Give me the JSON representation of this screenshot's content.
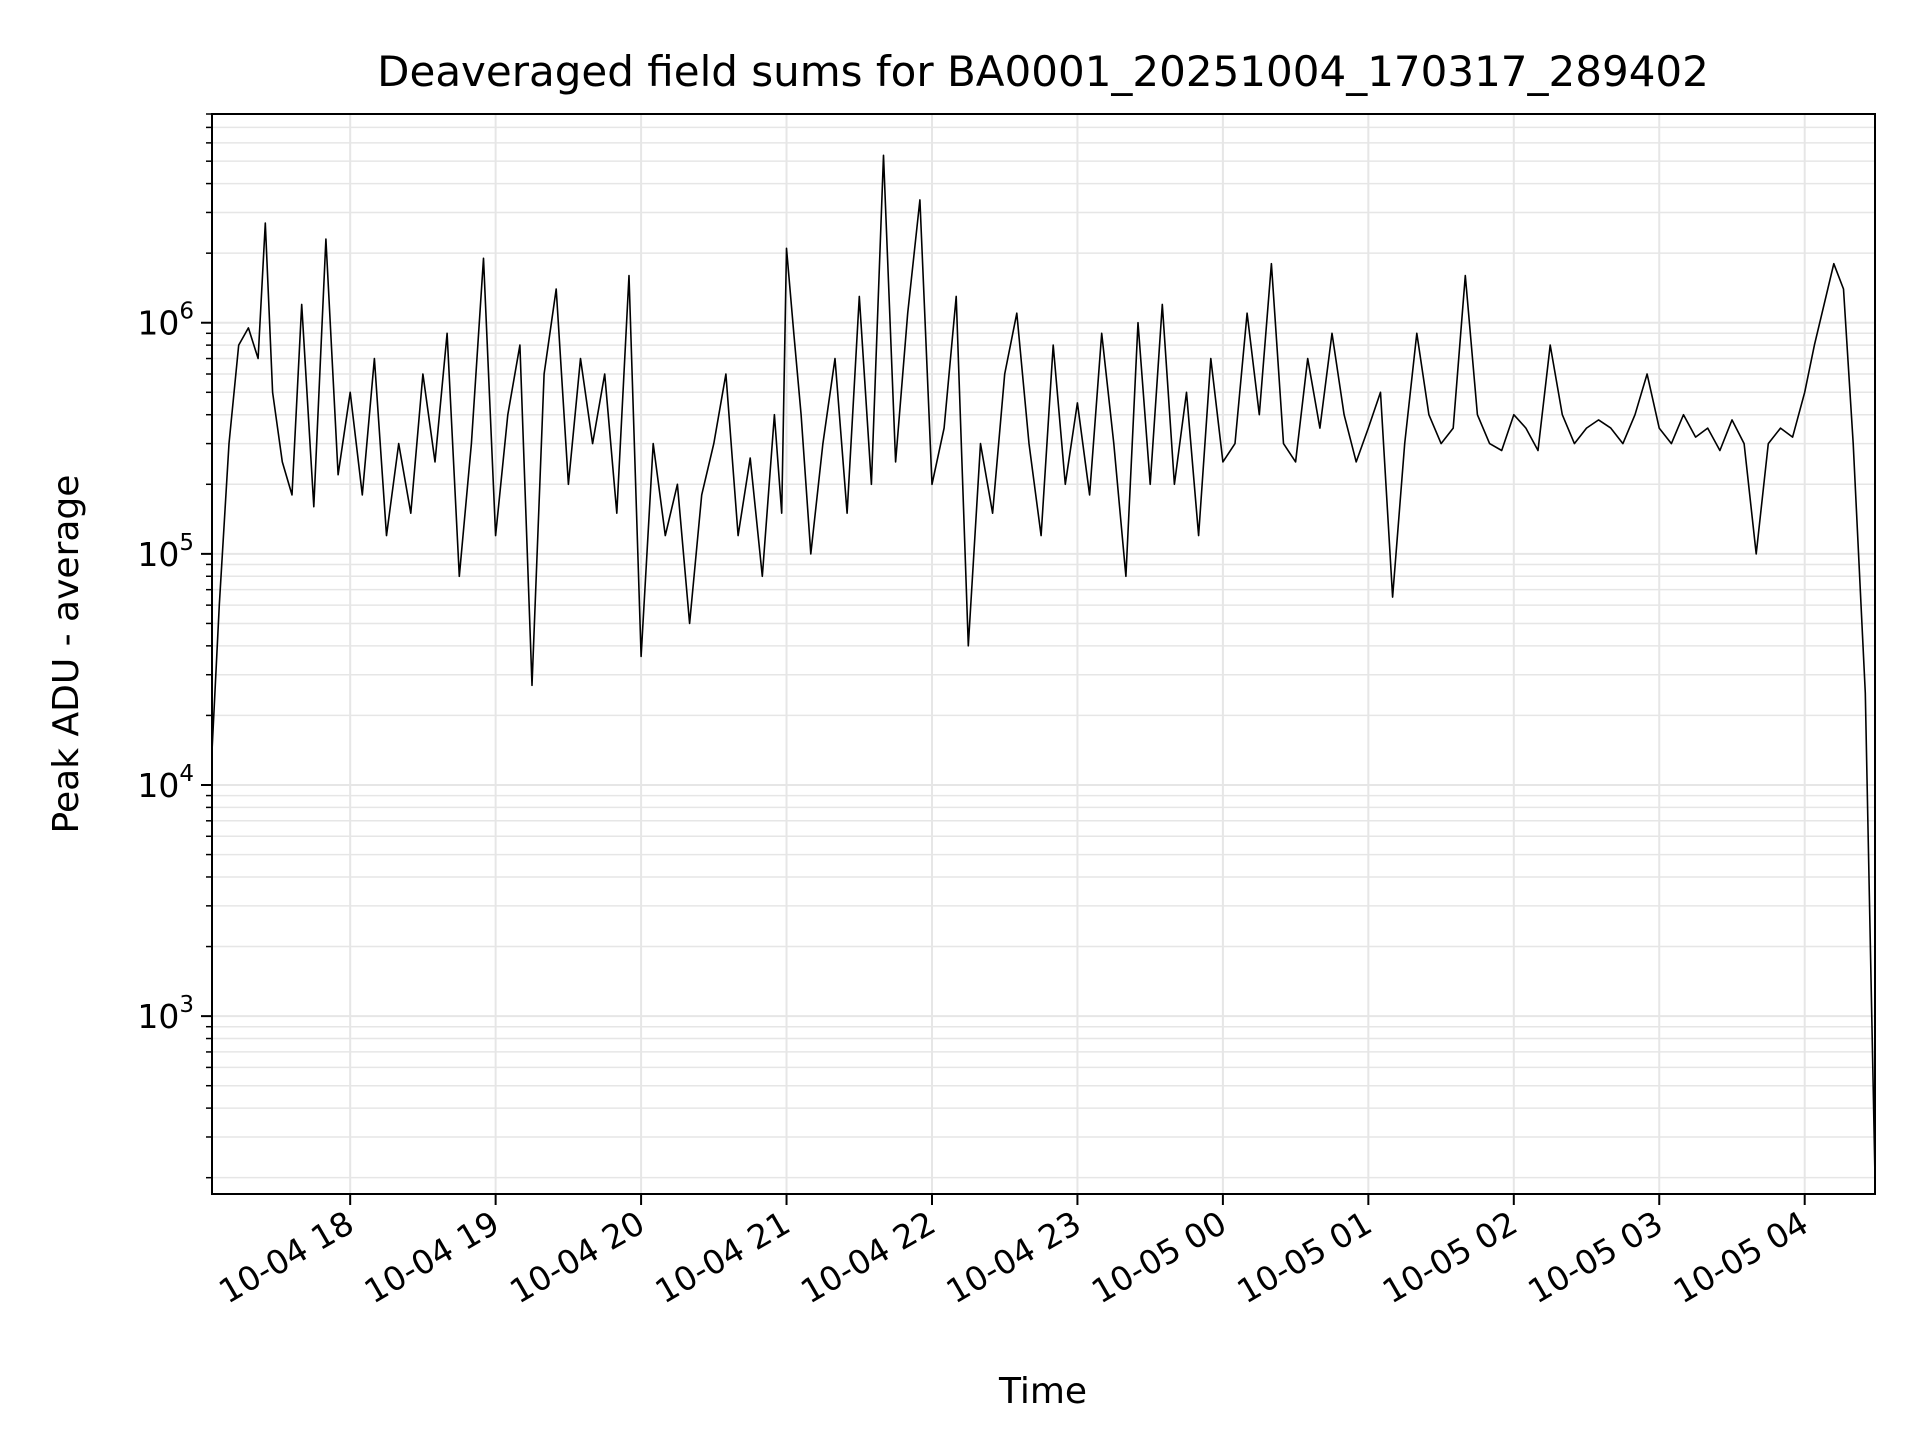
{
  "chart_data": {
    "type": "line",
    "title": "Deaveraged field sums for BA0001_20251004_170317_289402",
    "xlabel": "Time",
    "ylabel": "Peak ADU - average",
    "y_scale": "log",
    "grid": true,
    "grid_color": "#e6e6e6",
    "line_color": "#000000",
    "xlim": [
      "2025-10-04 17:03",
      "2025-10-05 04:29"
    ],
    "ylim": [
      170,
      8000000
    ],
    "x_ticks": [
      {
        "value": "2025-10-04 18:00",
        "label": "10-04 18"
      },
      {
        "value": "2025-10-04 19:00",
        "label": "10-04 19"
      },
      {
        "value": "2025-10-04 20:00",
        "label": "10-04 20"
      },
      {
        "value": "2025-10-04 21:00",
        "label": "10-04 21"
      },
      {
        "value": "2025-10-04 22:00",
        "label": "10-04 22"
      },
      {
        "value": "2025-10-04 23:00",
        "label": "10-04 23"
      },
      {
        "value": "2025-10-05 00:00",
        "label": "10-05 00"
      },
      {
        "value": "2025-10-05 01:00",
        "label": "10-05 01"
      },
      {
        "value": "2025-10-05 02:00",
        "label": "10-05 02"
      },
      {
        "value": "2025-10-05 03:00",
        "label": "10-05 03"
      },
      {
        "value": "2025-10-05 04:00",
        "label": "10-05 04"
      }
    ],
    "y_ticks": [
      {
        "value": 1000,
        "base": "10",
        "exp": "3"
      },
      {
        "value": 10000,
        "base": "10",
        "exp": "4"
      },
      {
        "value": 100000,
        "base": "10",
        "exp": "5"
      },
      {
        "value": 1000000,
        "base": "10",
        "exp": "6"
      }
    ],
    "series": [
      {
        "x": [
          "2025-10-04 17:03",
          "2025-10-04 17:06",
          "2025-10-04 17:10",
          "2025-10-04 17:14",
          "2025-10-04 17:18",
          "2025-10-04 17:22",
          "2025-10-04 17:25",
          "2025-10-04 17:28",
          "2025-10-04 17:32",
          "2025-10-04 17:36",
          "2025-10-04 17:40",
          "2025-10-04 17:45",
          "2025-10-04 17:50",
          "2025-10-04 17:55",
          "2025-10-04 18:00",
          "2025-10-04 18:05",
          "2025-10-04 18:10",
          "2025-10-04 18:15",
          "2025-10-04 18:20",
          "2025-10-04 18:25",
          "2025-10-04 18:30",
          "2025-10-04 18:35",
          "2025-10-04 18:40",
          "2025-10-04 18:45",
          "2025-10-04 18:50",
          "2025-10-04 18:55",
          "2025-10-04 19:00",
          "2025-10-04 19:05",
          "2025-10-04 19:10",
          "2025-10-04 19:15",
          "2025-10-04 19:20",
          "2025-10-04 19:25",
          "2025-10-04 19:30",
          "2025-10-04 19:35",
          "2025-10-04 19:40",
          "2025-10-04 19:45",
          "2025-10-04 19:50",
          "2025-10-04 19:55",
          "2025-10-04 20:00",
          "2025-10-04 20:05",
          "2025-10-04 20:10",
          "2025-10-04 20:15",
          "2025-10-04 20:20",
          "2025-10-04 20:25",
          "2025-10-04 20:30",
          "2025-10-04 20:35",
          "2025-10-04 20:40",
          "2025-10-04 20:45",
          "2025-10-04 20:50",
          "2025-10-04 20:55",
          "2025-10-04 20:58",
          "2025-10-04 21:00",
          "2025-10-04 21:03",
          "2025-10-04 21:06",
          "2025-10-04 21:10",
          "2025-10-04 21:15",
          "2025-10-04 21:20",
          "2025-10-04 21:25",
          "2025-10-04 21:30",
          "2025-10-04 21:35",
          "2025-10-04 21:40",
          "2025-10-04 21:45",
          "2025-10-04 21:50",
          "2025-10-04 21:55",
          "2025-10-04 22:00",
          "2025-10-04 22:05",
          "2025-10-04 22:10",
          "2025-10-04 22:15",
          "2025-10-04 22:20",
          "2025-10-04 22:25",
          "2025-10-04 22:30",
          "2025-10-04 22:35",
          "2025-10-04 22:40",
          "2025-10-04 22:45",
          "2025-10-04 22:50",
          "2025-10-04 22:55",
          "2025-10-04 23:00",
          "2025-10-04 23:05",
          "2025-10-04 23:10",
          "2025-10-04 23:15",
          "2025-10-04 23:20",
          "2025-10-04 23:25",
          "2025-10-04 23:30",
          "2025-10-04 23:35",
          "2025-10-04 23:40",
          "2025-10-04 23:45",
          "2025-10-04 23:50",
          "2025-10-04 23:55",
          "2025-10-05 00:00",
          "2025-10-05 00:05",
          "2025-10-05 00:10",
          "2025-10-05 00:15",
          "2025-10-05 00:20",
          "2025-10-05 00:25",
          "2025-10-05 00:30",
          "2025-10-05 00:35",
          "2025-10-05 00:40",
          "2025-10-05 00:45",
          "2025-10-05 00:50",
          "2025-10-05 00:55",
          "2025-10-05 01:00",
          "2025-10-05 01:05",
          "2025-10-05 01:10",
          "2025-10-05 01:15",
          "2025-10-05 01:20",
          "2025-10-05 01:25",
          "2025-10-05 01:30",
          "2025-10-05 01:35",
          "2025-10-05 01:40",
          "2025-10-05 01:45",
          "2025-10-05 01:50",
          "2025-10-05 01:55",
          "2025-10-05 02:00",
          "2025-10-05 02:05",
          "2025-10-05 02:10",
          "2025-10-05 02:15",
          "2025-10-05 02:20",
          "2025-10-05 02:25",
          "2025-10-05 02:30",
          "2025-10-05 02:35",
          "2025-10-05 02:40",
          "2025-10-05 02:45",
          "2025-10-05 02:50",
          "2025-10-05 02:55",
          "2025-10-05 03:00",
          "2025-10-05 03:05",
          "2025-10-05 03:10",
          "2025-10-05 03:15",
          "2025-10-05 03:20",
          "2025-10-05 03:25",
          "2025-10-05 03:30",
          "2025-10-05 03:35",
          "2025-10-05 03:40",
          "2025-10-05 03:45",
          "2025-10-05 03:50",
          "2025-10-05 03:55",
          "2025-10-05 04:00",
          "2025-10-05 04:04",
          "2025-10-05 04:08",
          "2025-10-05 04:12",
          "2025-10-05 04:16",
          "2025-10-05 04:20",
          "2025-10-05 04:25",
          "2025-10-05 04:29"
        ],
        "y": [
          14000,
          60000,
          300000,
          800000,
          950000,
          700000,
          2700000,
          500000,
          250000,
          180000,
          1200000,
          160000,
          2300000,
          220000,
          500000,
          180000,
          700000,
          120000,
          300000,
          150000,
          600000,
          250000,
          900000,
          80000,
          300000,
          1900000,
          120000,
          400000,
          800000,
          27000,
          600000,
          1400000,
          200000,
          700000,
          300000,
          600000,
          150000,
          1600000,
          36000,
          300000,
          120000,
          200000,
          50000,
          180000,
          300000,
          600000,
          120000,
          260000,
          80000,
          400000,
          150000,
          2100000,
          900000,
          400000,
          100000,
          300000,
          700000,
          150000,
          1300000,
          200000,
          5300000,
          250000,
          1100000,
          3400000,
          200000,
          350000,
          1300000,
          40000,
          300000,
          150000,
          600000,
          1100000,
          300000,
          120000,
          800000,
          200000,
          450000,
          180000,
          900000,
          300000,
          80000,
          1000000,
          200000,
          1200000,
          200000,
          500000,
          120000,
          700000,
          250000,
          300000,
          1100000,
          400000,
          1800000,
          300000,
          250000,
          700000,
          350000,
          900000,
          400000,
          250000,
          350000,
          500000,
          65000,
          300000,
          900000,
          400000,
          300000,
          350000,
          1600000,
          400000,
          300000,
          280000,
          400000,
          350000,
          280000,
          800000,
          400000,
          300000,
          350000,
          380000,
          350000,
          300000,
          400000,
          600000,
          350000,
          300000,
          400000,
          320000,
          350000,
          280000,
          380000,
          300000,
          100000,
          300000,
          350000,
          320000,
          500000,
          800000,
          1200000,
          1800000,
          1400000,
          300000,
          25000,
          200
        ]
      }
    ]
  }
}
